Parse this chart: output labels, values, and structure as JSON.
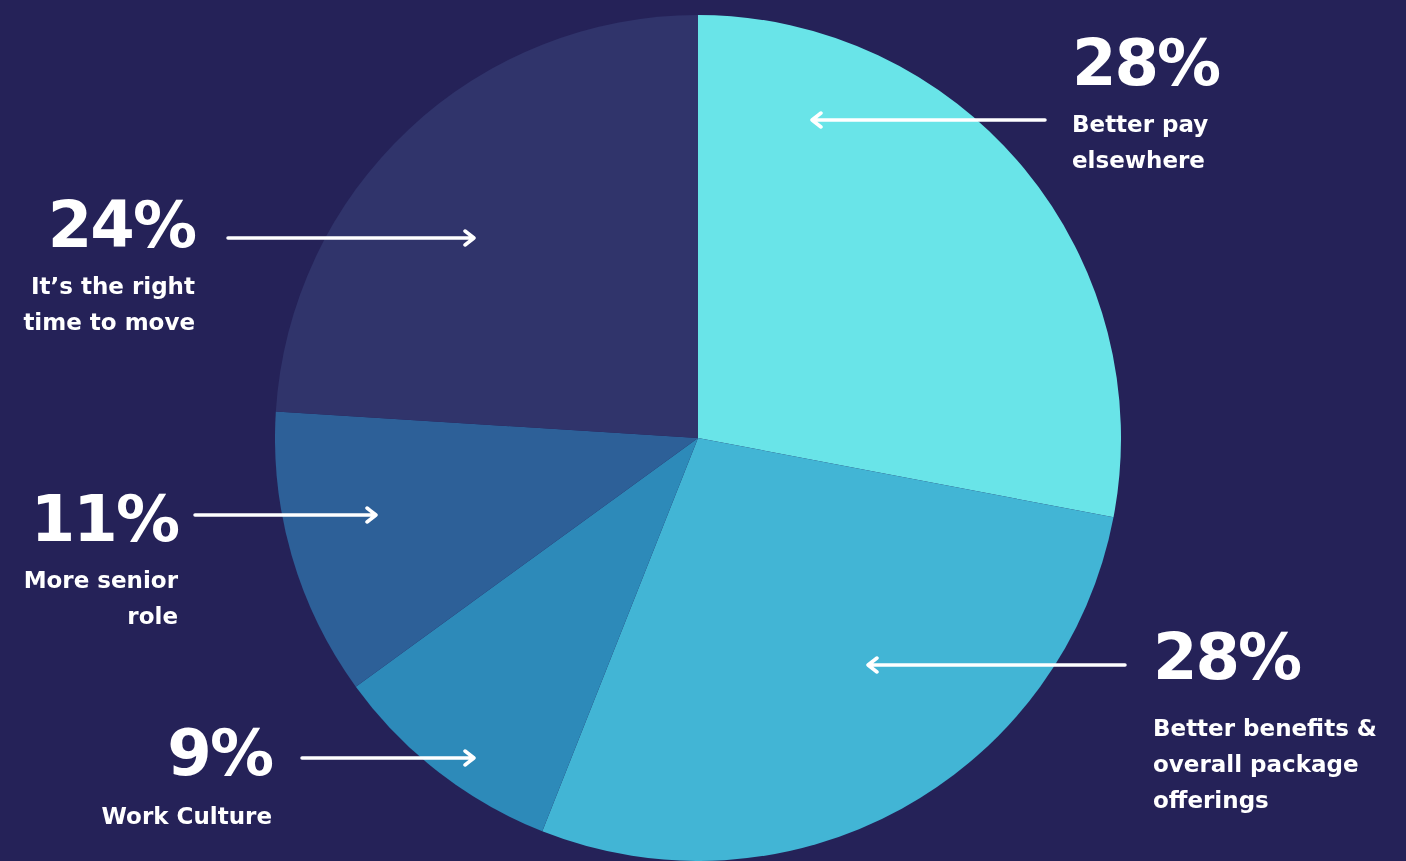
{
  "chart_data": {
    "type": "pie",
    "categories": [
      "Better pay elsewhere",
      "Better benefits & overall package offerings",
      "Work Culture",
      "More senior role",
      "It’s the right time to move"
    ],
    "values": [
      28,
      28,
      9,
      11,
      24
    ],
    "value_labels": [
      "28%",
      "28%",
      "9%",
      "11%",
      "24%"
    ],
    "colors": [
      "#69e4e8",
      "#42b5d5",
      "#2d8ab9",
      "#2d6098",
      "#30346b"
    ],
    "legend": false
  }
}
